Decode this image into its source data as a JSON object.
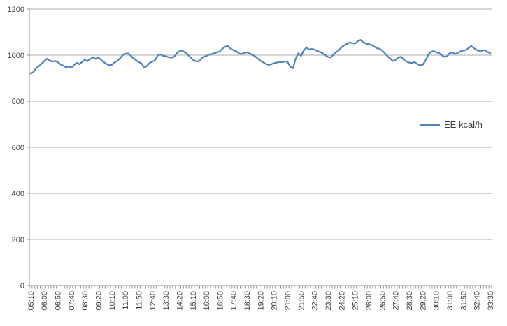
{
  "chart_data": {
    "type": "line",
    "title": "",
    "xlabel": "",
    "ylabel": "",
    "ylim": [
      0,
      1200
    ],
    "y_ticks": [
      0,
      200,
      400,
      600,
      800,
      1000,
      1200
    ],
    "grid": true,
    "legend_position": "right-middle",
    "label_every": 5,
    "x_tick_labels": [
      "05:10",
      "06:00",
      "06:50",
      "07:40",
      "08:30",
      "09:20",
      "10:10",
      "11:00",
      "11:50",
      "12:40",
      "13:30",
      "14:20",
      "15:10",
      "16:00",
      "16:50",
      "17:40",
      "18:30",
      "19:20",
      "20:10",
      "21:00",
      "21:50",
      "22:40",
      "23:30",
      "24:20",
      "25:10",
      "26:00",
      "26:50",
      "27:40",
      "28:30",
      "29:20",
      "30:10",
      "31:00",
      "31:50",
      "32:40",
      "33:30"
    ],
    "series": [
      {
        "name": "EE kcal/h",
        "color": "#4F81BD",
        "values": [
          920,
          927,
          944,
          952,
          963,
          975,
          985,
          978,
          972,
          975,
          970,
          960,
          955,
          948,
          951,
          945,
          957,
          967,
          961,
          971,
          980,
          974,
          984,
          991,
          984,
          989,
          981,
          970,
          962,
          956,
          958,
          969,
          975,
          986,
          1000,
          1006,
          1008,
          998,
          986,
          978,
          970,
          964,
          946,
          953,
          967,
          972,
          978,
          999,
          1003,
          997,
          995,
          991,
          989,
          993,
          1008,
          1017,
          1021,
          1012,
          1004,
          991,
          980,
          974,
          972,
          984,
          992,
          997,
          1002,
          1005,
          1009,
          1012,
          1017,
          1029,
          1037,
          1040,
          1028,
          1022,
          1017,
          1008,
          1005,
          1010,
          1012,
          1007,
          1002,
          995,
          985,
          976,
          969,
          962,
          958,
          961,
          965,
          968,
          971,
          970,
          973,
          971,
          950,
          943,
          985,
          1008,
          997,
          1020,
          1034,
          1024,
          1027,
          1024,
          1018,
          1014,
          1008,
          1000,
          992,
          990,
          1003,
          1013,
          1021,
          1035,
          1043,
          1049,
          1055,
          1052,
          1050,
          1061,
          1066,
          1056,
          1050,
          1048,
          1045,
          1038,
          1031,
          1028,
          1020,
          1008,
          995,
          985,
          975,
          980,
          990,
          993,
          981,
          972,
          968,
          966,
          970,
          962,
          956,
          958,
          976,
          1000,
          1014,
          1018,
          1012,
          1010,
          1000,
          992,
          995,
          1009,
          1012,
          1005,
          1010,
          1017,
          1020,
          1022,
          1031,
          1040,
          1030,
          1022,
          1018,
          1020,
          1022,
          1014,
          1008
        ]
      }
    ],
    "colors": {
      "line": "#4F81BD",
      "gridline": "#ababab",
      "axis": "#8c8c8c",
      "text": "#3f3f3f"
    }
  }
}
